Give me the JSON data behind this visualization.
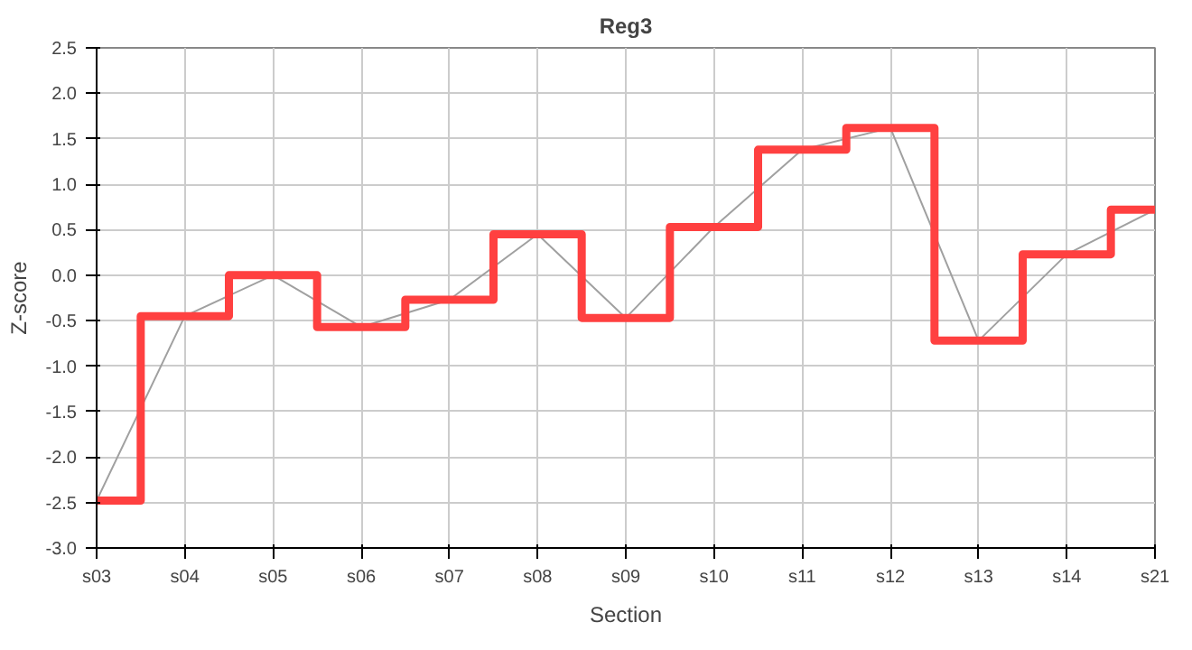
{
  "chart_data": {
    "type": "line",
    "title": "Reg3",
    "xlabel": "Section",
    "ylabel": "Z-score",
    "categories": [
      "s03",
      "s04",
      "s05",
      "s06",
      "s07",
      "s08",
      "s09",
      "s10",
      "s11",
      "s12",
      "s13",
      "s14",
      "s21"
    ],
    "series": [
      {
        "color": "#a0a0a0",
        "values": [
          -2.48,
          -0.45,
          0.0,
          -0.57,
          -0.27,
          0.45,
          -0.47,
          0.53,
          1.38,
          1.62,
          -0.72,
          0.23,
          0.72
        ]
      },
      {
        "type": "step",
        "color": "#ff4040",
        "values": [
          -2.48,
          -0.45,
          0.0,
          -0.57,
          -0.27,
          0.45,
          -0.47,
          0.53,
          1.38,
          1.62,
          -0.72,
          0.23,
          0.72
        ]
      }
    ],
    "ylim": [
      -3.0,
      2.5
    ],
    "yticks": [
      {
        "value": -3,
        "label": "-3.0"
      },
      {
        "value": -2.5,
        "label": "-2.5"
      },
      {
        "value": -2,
        "label": "-2.0"
      },
      {
        "value": -1.5,
        "label": "-1.5"
      },
      {
        "value": -1,
        "label": "-1.0"
      },
      {
        "value": -0.5,
        "label": "-0.5"
      },
      {
        "value": 0,
        "label": "0.0"
      },
      {
        "value": 0.5,
        "label": "0.5"
      },
      {
        "value": 1,
        "label": "1.0"
      },
      {
        "value": 1.5,
        "label": "1.5"
      },
      {
        "value": 2,
        "label": "2.0"
      },
      {
        "value": 2.5,
        "label": "2.5"
      }
    ],
    "grid": true
  }
}
